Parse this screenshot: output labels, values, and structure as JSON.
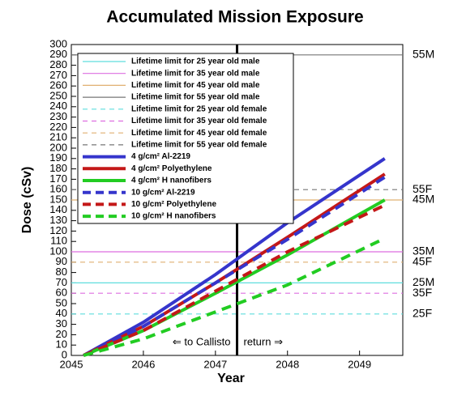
{
  "chart_data": {
    "type": "line",
    "title": "Accumulated Mission Exposure",
    "x_label": "Year",
    "y_label": "Dose (cSv)",
    "xlim": [
      2045,
      2049.6
    ],
    "xticks": [
      2045,
      2046,
      2047,
      2048,
      2049
    ],
    "ylim": [
      0,
      300
    ],
    "yticks": [
      0,
      10,
      20,
      30,
      40,
      50,
      60,
      70,
      80,
      90,
      100,
      110,
      120,
      130,
      140,
      150,
      160,
      170,
      180,
      190,
      200,
      210,
      220,
      230,
      240,
      250,
      260,
      270,
      280,
      290,
      300
    ],
    "limits": [
      {
        "name": "Lifetime limit for 25 year old male",
        "label": "25M",
        "value": 70,
        "color": "#5fdede",
        "dashed": false
      },
      {
        "name": "Lifetime limit for 35 year old male",
        "label": "35M",
        "value": 100,
        "color": "#dd6ee0",
        "dashed": false
      },
      {
        "name": "Lifetime limit for 45 year old male",
        "label": "45M",
        "value": 150,
        "color": "#e0b070",
        "dashed": false
      },
      {
        "name": "Lifetime limit for 55 year old male",
        "label": "55M",
        "value": 290,
        "color": "#777777",
        "dashed": false
      },
      {
        "name": "Lifetime limit for 25 year old female",
        "label": "25F",
        "value": 40,
        "color": "#5fdede",
        "dashed": true
      },
      {
        "name": "Lifetime limit for 35 year old female",
        "label": "35F",
        "value": 60,
        "color": "#dd6ee0",
        "dashed": true
      },
      {
        "name": "Lifetime limit for 45 year old female",
        "label": "45F",
        "value": 90,
        "color": "#e0b070",
        "dashed": true
      },
      {
        "name": "Lifetime limit for 55 year old female",
        "label": "55F",
        "value": 160,
        "color": "#777777",
        "dashed": true
      }
    ],
    "x": [
      2045.17,
      2046,
      2047,
      2048,
      2049.35
    ],
    "series": [
      {
        "name": "4 g/cm² Al-2219",
        "color": "#3535cc",
        "dashed": false,
        "values": [
          0,
          32,
          78,
          128,
          190
        ]
      },
      {
        "name": "4 g/cm² Polyethylene",
        "color": "#c41818",
        "dashed": false,
        "values": [
          0,
          28,
          70,
          114,
          175
        ]
      },
      {
        "name": "4 g/cm² H nanofibers",
        "color": "#22cc22",
        "dashed": false,
        "values": [
          0,
          24,
          60,
          97,
          150
        ]
      },
      {
        "name": "10 g/cm² Al-2219",
        "color": "#3535cc",
        "dashed": true,
        "values": [
          0,
          28,
          70,
          112,
          172
        ]
      },
      {
        "name": "10 g/cm² Polyethylene",
        "color": "#c41818",
        "dashed": true,
        "values": [
          0,
          24,
          62,
          100,
          145
        ]
      },
      {
        "name": "10 g/cm² H nanofibers",
        "color": "#22cc22",
        "dashed": true,
        "values": [
          0,
          16,
          42,
          68,
          113
        ]
      }
    ],
    "divider": {
      "x": 2047.3,
      "left_text": "⇐ to Callisto",
      "right_text": "return ⇒"
    }
  }
}
